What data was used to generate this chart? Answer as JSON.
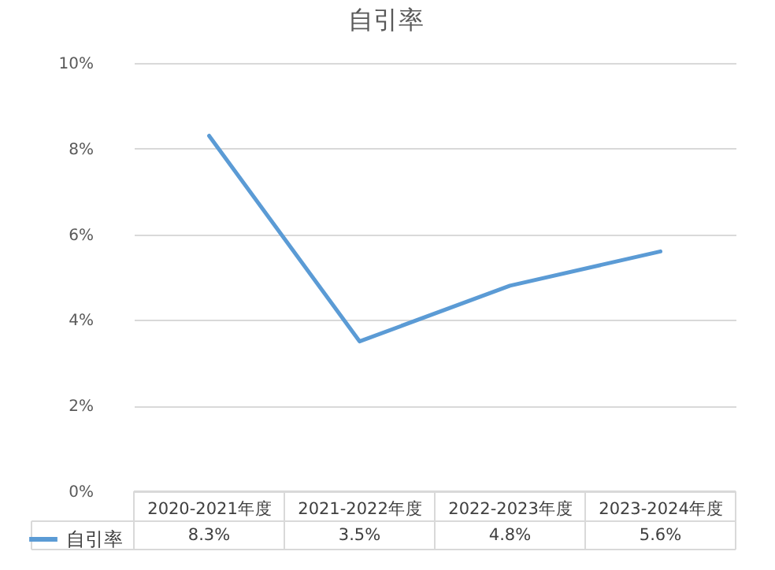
{
  "chart_data": {
    "type": "line",
    "title": "自引率",
    "categories": [
      "2020-2021年度",
      "2021-2022年度",
      "2022-2023年度",
      "2023-2024年度"
    ],
    "series": [
      {
        "name": "自引率",
        "color": "#5b9bd5",
        "values": [
          8.3,
          3.5,
          4.8,
          5.6
        ],
        "value_labels": [
          "8.3%",
          "3.5%",
          "4.8%",
          "5.6%"
        ]
      }
    ],
    "ylim": [
      0,
      10
    ],
    "yticks": [
      {
        "value": 0,
        "label": "0%"
      },
      {
        "value": 2,
        "label": "2%"
      },
      {
        "value": 4,
        "label": "4%"
      },
      {
        "value": 6,
        "label": "6%"
      },
      {
        "value": 8,
        "label": "8%"
      },
      {
        "value": 10,
        "label": "10%"
      }
    ],
    "grid": "y",
    "legend": "bottom left"
  }
}
